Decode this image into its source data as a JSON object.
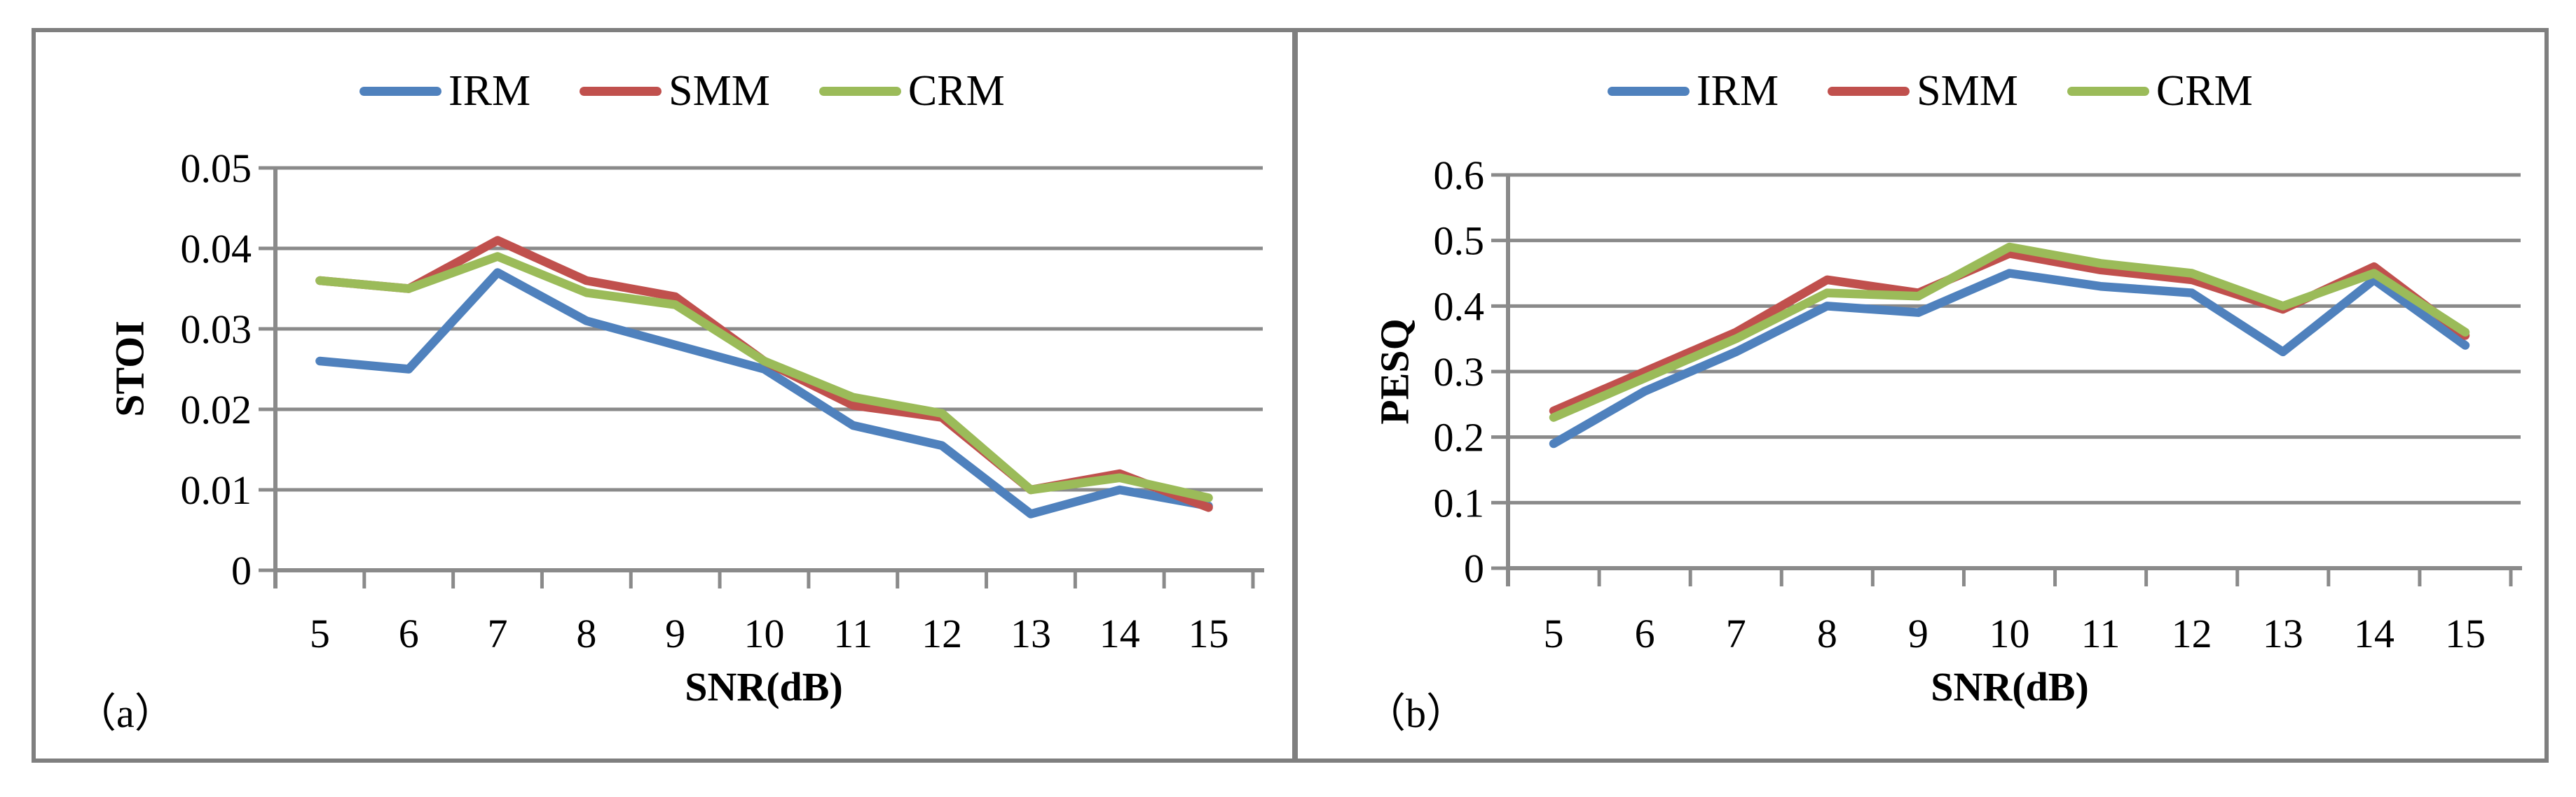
{
  "figure": {
    "background": "#ffffff",
    "border_color": "#7f7f7f",
    "gridline_color": "#8a8a8a",
    "axis_color": "#8a8a8a",
    "text_color": "#000000"
  },
  "panels": [
    {
      "label": "（a）"
    },
    {
      "label": "（b）"
    }
  ],
  "chart_data": [
    {
      "type": "line",
      "title": "",
      "xlabel": "SNR(dB)",
      "ylabel": "STOI",
      "x": [
        5,
        6,
        7,
        8,
        9,
        10,
        11,
        12,
        13,
        14,
        15
      ],
      "ylim": [
        0,
        0.05
      ],
      "yticks": [
        0,
        0.01,
        0.02,
        0.03,
        0.04,
        0.05
      ],
      "ytick_labels": [
        "0",
        "0.01",
        "0.02",
        "0.03",
        "0.04",
        "0.05"
      ],
      "grid": true,
      "legend_position": "top",
      "series": [
        {
          "name": "IRM",
          "color": "#4f81bd",
          "values": [
            0.026,
            0.025,
            0.037,
            0.031,
            0.028,
            0.025,
            0.018,
            0.0155,
            0.007,
            0.01,
            0.008
          ]
        },
        {
          "name": "SMM",
          "color": "#c0504d",
          "values": [
            0.036,
            0.035,
            0.041,
            0.036,
            0.034,
            0.026,
            0.0205,
            0.019,
            0.01,
            0.012,
            0.0078
          ]
        },
        {
          "name": "CRM",
          "color": "#9bbb59",
          "values": [
            0.036,
            0.035,
            0.039,
            0.0345,
            0.033,
            0.026,
            0.0215,
            0.0195,
            0.01,
            0.0115,
            0.009
          ]
        }
      ]
    },
    {
      "type": "line",
      "title": "",
      "xlabel": "SNR(dB)",
      "ylabel": "PESQ",
      "x": [
        5,
        6,
        7,
        8,
        9,
        10,
        11,
        12,
        13,
        14,
        15
      ],
      "ylim": [
        0,
        0.6
      ],
      "yticks": [
        0,
        0.1,
        0.2,
        0.3,
        0.4,
        0.5,
        0.6
      ],
      "ytick_labels": [
        "0",
        "0.1",
        "0.2",
        "0.3",
        "0.4",
        "0.5",
        "0.6"
      ],
      "grid": true,
      "legend_position": "top",
      "series": [
        {
          "name": "IRM",
          "color": "#4f81bd",
          "values": [
            0.19,
            0.27,
            0.33,
            0.4,
            0.39,
            0.45,
            0.43,
            0.42,
            0.33,
            0.44,
            0.34
          ]
        },
        {
          "name": "SMM",
          "color": "#c0504d",
          "values": [
            0.24,
            0.3,
            0.36,
            0.44,
            0.42,
            0.48,
            0.455,
            0.44,
            0.395,
            0.46,
            0.355
          ]
        },
        {
          "name": "CRM",
          "color": "#9bbb59",
          "values": [
            0.23,
            0.29,
            0.35,
            0.42,
            0.415,
            0.49,
            0.465,
            0.45,
            0.4,
            0.45,
            0.36
          ]
        }
      ]
    }
  ]
}
